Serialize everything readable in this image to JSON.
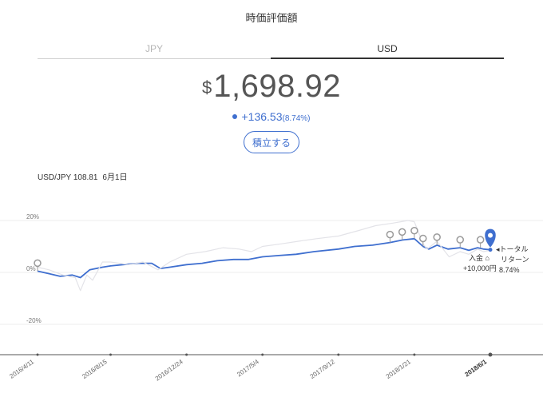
{
  "header": {
    "title": "時価評価額"
  },
  "tabs": [
    {
      "label": "JPY"
    },
    {
      "label": "USD"
    }
  ],
  "valuation": {
    "currency_sign": "$",
    "amount": "1,698.92"
  },
  "change": {
    "amount": "+136.53",
    "percent": "(8.74%)"
  },
  "actions": {
    "invest_label": "積立する"
  },
  "rate": {
    "label": "USD/JPY 108.81",
    "date": "6月1日"
  },
  "annotations": {
    "deposit_label": "入金",
    "deposit_amount": "+10,000円",
    "total_return_line1": "トータル",
    "total_return_line2": "リターン",
    "total_return_pct": "8.74%"
  },
  "colors": {
    "accent": "#3f6fcf",
    "benchmark": "#e3e3e8",
    "marker": "#9a9a9a"
  },
  "chart_data": {
    "type": "line",
    "y_ticks": [
      {
        "value": 20,
        "label": "20%"
      },
      {
        "value": 0,
        "label": "0%"
      },
      {
        "value": -20,
        "label": "-20%"
      }
    ],
    "ylim": [
      -30,
      22
    ],
    "x_ticks": [
      {
        "date": "2016-04-11",
        "label": "2016/4/11"
      },
      {
        "date": "2016-08-15",
        "label": "2016/8/15"
      },
      {
        "date": "2016-12-24",
        "label": "2016/12/24"
      },
      {
        "date": "2017-05-04",
        "label": "2017/5/4"
      },
      {
        "date": "2017-09-12",
        "label": "2017/9/12"
      },
      {
        "date": "2018-01-21",
        "label": "2018/1/21"
      },
      {
        "date": "2018-06-01",
        "label": "2018/6/1",
        "bold": true
      }
    ],
    "series": [
      {
        "role": "portfolio",
        "color": "#3f6fcf",
        "points": [
          [
            "2016-04-11",
            0.5
          ],
          [
            "2016-05-01",
            -0.5
          ],
          [
            "2016-05-20",
            -1.5
          ],
          [
            "2016-06-10",
            -1.0
          ],
          [
            "2016-06-24",
            -2.0
          ],
          [
            "2016-07-10",
            1.0
          ],
          [
            "2016-08-01",
            2.0
          ],
          [
            "2016-08-15",
            2.5
          ],
          [
            "2016-09-05",
            3.0
          ],
          [
            "2016-10-01",
            3.5
          ],
          [
            "2016-10-25",
            3.5
          ],
          [
            "2016-11-09",
            1.5
          ],
          [
            "2016-11-25",
            2.0
          ],
          [
            "2016-12-24",
            3.0
          ],
          [
            "2017-01-20",
            3.5
          ],
          [
            "2017-02-15",
            4.5
          ],
          [
            "2017-03-15",
            5.0
          ],
          [
            "2017-04-10",
            5.0
          ],
          [
            "2017-05-04",
            6.0
          ],
          [
            "2017-06-01",
            6.5
          ],
          [
            "2017-07-01",
            7.0
          ],
          [
            "2017-08-01",
            8.0
          ],
          [
            "2017-09-12",
            9.0
          ],
          [
            "2017-10-10",
            10.0
          ],
          [
            "2017-11-10",
            10.5
          ],
          [
            "2017-12-10",
            11.5
          ],
          [
            "2018-01-01",
            12.5
          ],
          [
            "2018-01-21",
            13.0
          ],
          [
            "2018-02-05",
            10.0
          ],
          [
            "2018-02-15",
            9.0
          ],
          [
            "2018-03-01",
            10.5
          ],
          [
            "2018-03-20",
            9.0
          ],
          [
            "2018-04-10",
            9.5
          ],
          [
            "2018-04-25",
            8.5
          ],
          [
            "2018-05-10",
            9.5
          ],
          [
            "2018-05-20",
            9.0
          ],
          [
            "2018-06-01",
            8.74
          ]
        ]
      },
      {
        "role": "benchmark",
        "color": "#e3e3e8",
        "points": [
          [
            "2016-04-11",
            2.0
          ],
          [
            "2016-05-01",
            1.0
          ],
          [
            "2016-05-25",
            -1.0
          ],
          [
            "2016-06-15",
            -2.0
          ],
          [
            "2016-06-24",
            -7.0
          ],
          [
            "2016-07-05",
            -1.0
          ],
          [
            "2016-07-15",
            -3.0
          ],
          [
            "2016-08-01",
            4.0
          ],
          [
            "2016-08-15",
            4.0
          ],
          [
            "2016-09-15",
            3.0
          ],
          [
            "2016-10-10",
            4.0
          ],
          [
            "2016-11-05",
            1.0
          ],
          [
            "2016-11-25",
            4.0
          ],
          [
            "2016-12-24",
            7.0
          ],
          [
            "2017-01-25",
            8.0
          ],
          [
            "2017-02-25",
            9.5
          ],
          [
            "2017-03-25",
            9.0
          ],
          [
            "2017-04-15",
            8.0
          ],
          [
            "2017-05-04",
            10.0
          ],
          [
            "2017-06-05",
            11.0
          ],
          [
            "2017-07-05",
            12.0
          ],
          [
            "2017-08-05",
            13.0
          ],
          [
            "2017-09-12",
            14.0
          ],
          [
            "2017-10-15",
            16.0
          ],
          [
            "2017-11-15",
            18.0
          ],
          [
            "2017-12-15",
            19.0
          ],
          [
            "2018-01-10",
            20.0
          ],
          [
            "2018-01-21",
            19.5
          ],
          [
            "2018-02-05",
            11.0
          ],
          [
            "2018-02-12",
            9.0
          ],
          [
            "2018-03-01",
            12.0
          ],
          [
            "2018-03-22",
            6.0
          ],
          [
            "2018-04-10",
            8.0
          ],
          [
            "2018-04-25",
            7.0
          ],
          [
            "2018-05-10",
            9.0
          ],
          [
            "2018-05-20",
            8.0
          ],
          [
            "2018-06-01",
            8.5
          ]
        ]
      }
    ],
    "markers": [
      [
        "2016-04-11",
        0.5
      ],
      [
        "2017-12-10",
        11.5
      ],
      [
        "2017-12-31",
        12.5
      ],
      [
        "2018-01-21",
        13.0
      ],
      [
        "2018-02-05",
        10.0
      ],
      [
        "2018-03-01",
        10.5
      ],
      [
        "2018-04-10",
        9.5
      ],
      [
        "2018-05-15",
        9.5
      ]
    ],
    "current": {
      "date": "2018-06-01",
      "value": 8.74
    }
  }
}
